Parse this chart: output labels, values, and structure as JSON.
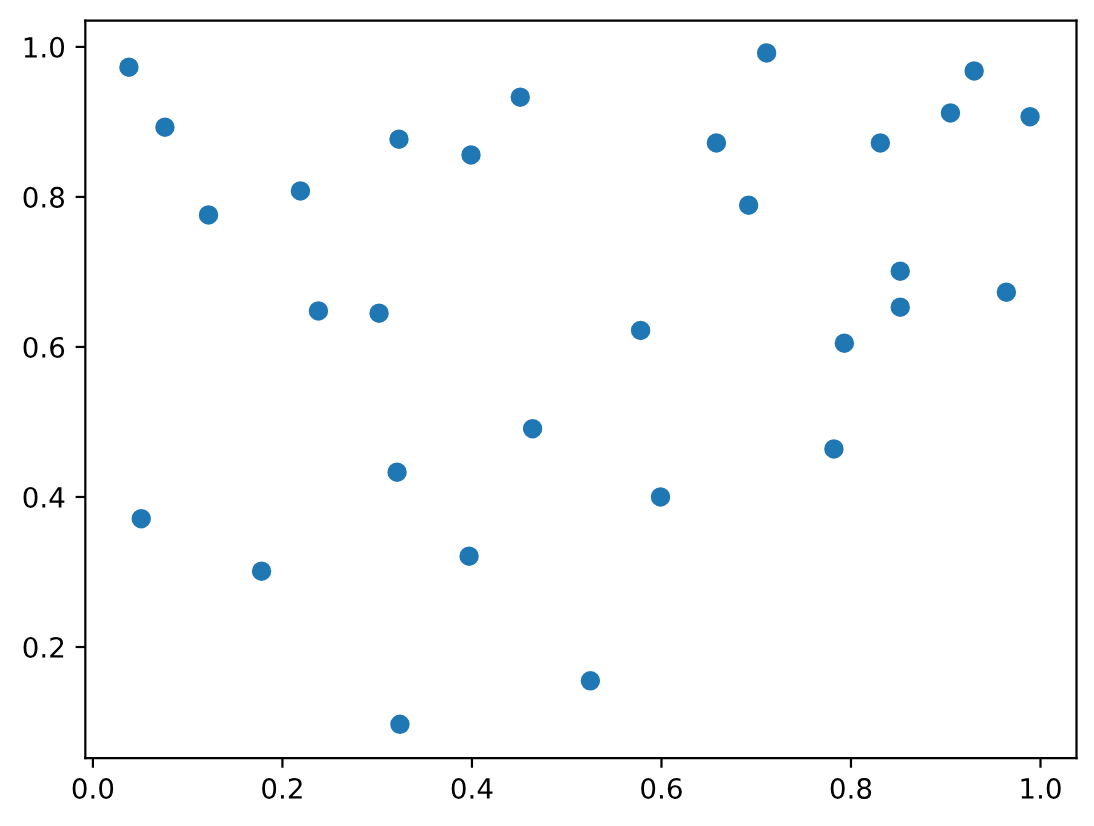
{
  "chart_data": {
    "type": "scatter",
    "x": [
      0.038,
      0.076,
      0.122,
      0.219,
      0.238,
      0.302,
      0.323,
      0.399,
      0.451,
      0.711,
      0.93,
      0.905,
      0.989,
      0.658,
      0.831,
      0.692,
      0.852,
      0.852,
      0.964,
      0.578,
      0.793,
      0.051,
      0.178,
      0.321,
      0.397,
      0.464,
      0.324,
      0.782,
      0.599,
      0.525
    ],
    "values": [
      0.973,
      0.893,
      0.776,
      0.808,
      0.648,
      0.645,
      0.877,
      0.856,
      0.933,
      0.992,
      0.968,
      0.912,
      0.907,
      0.872,
      0.872,
      0.789,
      0.701,
      0.653,
      0.673,
      0.622,
      0.605,
      0.371,
      0.301,
      0.433,
      0.321,
      0.491,
      0.097,
      0.464,
      0.4,
      0.155
    ],
    "color": "#1f77b4",
    "marker": "circle",
    "xlim": [
      -0.008,
      1.038
    ],
    "ylim": [
      0.052,
      1.035
    ],
    "xticks": [
      {
        "value": 0,
        "label": "0.0"
      },
      0.2,
      0.4,
      0.6,
      0.8,
      {
        "value": 1,
        "label": "1.0"
      }
    ],
    "yticks": [
      0.2,
      0.4,
      0.6,
      0.8,
      {
        "value": 1,
        "label": "1.0"
      }
    ],
    "grid": false
  }
}
